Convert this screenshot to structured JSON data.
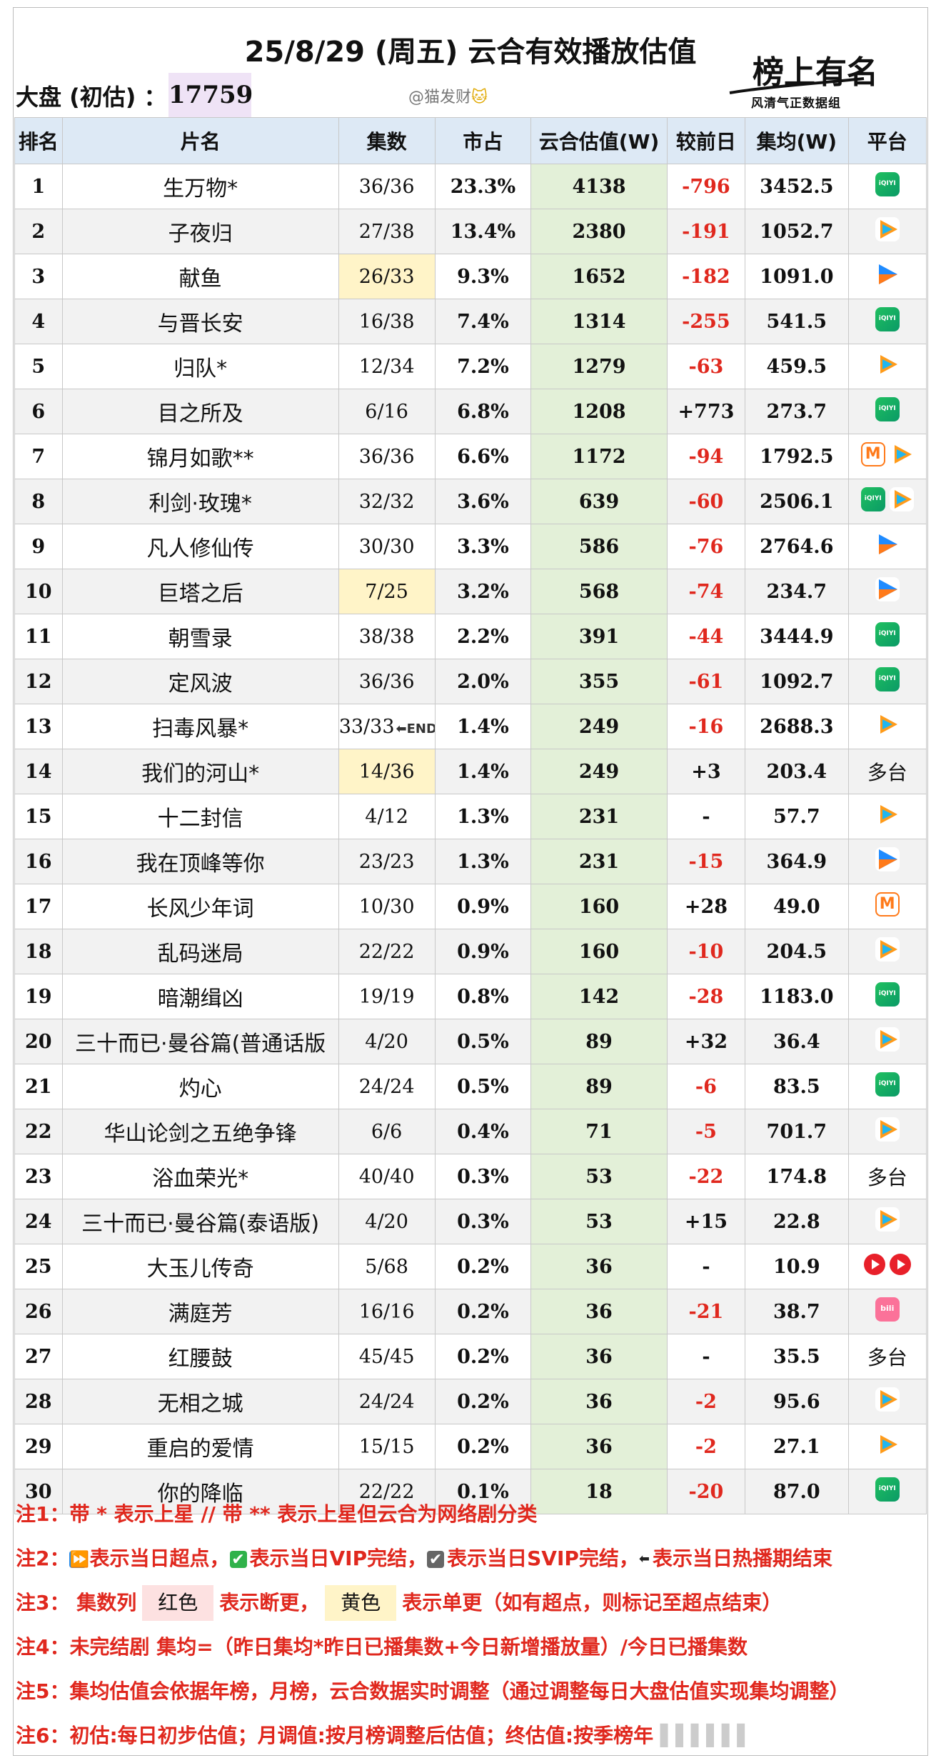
{
  "header": {
    "title": "25/8/29 (周五) 云合有效播放估值",
    "dapan_label": "大盘 (初估) ：",
    "dapan_value": "17759",
    "author": "@猫发财",
    "author_emoji": "🐱",
    "logo_script": "榜上有名",
    "logo_text": "风清气正数据组"
  },
  "table": {
    "columns": [
      "排名",
      "片名",
      "集数",
      "市占",
      "云合估值(W)",
      "较前日",
      "集均(W)",
      "平台"
    ],
    "rows": [
      {
        "rank": "1",
        "name": "生万物*",
        "eps": "36/36",
        "share": "23.3%",
        "value": "4138",
        "diff": "-796",
        "avg": "3452.5",
        "platform": [
          "iqiyi"
        ]
      },
      {
        "rank": "2",
        "name": "子夜归",
        "eps": "27/38",
        "share": "13.4%",
        "value": "2380",
        "diff": "-191",
        "avg": "1052.7",
        "platform": [
          "tencent"
        ]
      },
      {
        "rank": "3",
        "name": "献鱼",
        "eps": "26/33",
        "share": "9.3%",
        "value": "1652",
        "diff": "-182",
        "avg": "1091.0",
        "platform": [
          "youku"
        ],
        "eps_mark": "yellow"
      },
      {
        "rank": "4",
        "name": "与晋长安",
        "eps": "16/38",
        "share": "7.4%",
        "value": "1314",
        "diff": "-255",
        "avg": "541.5",
        "platform": [
          "iqiyi"
        ]
      },
      {
        "rank": "5",
        "name": "归队*",
        "eps": "12/34",
        "share": "7.2%",
        "value": "1279",
        "diff": "-63",
        "avg": "459.5",
        "platform": [
          "tencent"
        ]
      },
      {
        "rank": "6",
        "name": "目之所及",
        "eps": "6/16",
        "share": "6.8%",
        "value": "1208",
        "diff": "+773",
        "avg": "273.7",
        "platform": [
          "iqiyi"
        ]
      },
      {
        "rank": "7",
        "name": "锦月如歌**",
        "eps": "36/36",
        "share": "6.6%",
        "value": "1172",
        "diff": "-94",
        "avg": "1792.5",
        "platform": [
          "mango",
          "tencent"
        ]
      },
      {
        "rank": "8",
        "name": "利剑·玫瑰*",
        "eps": "32/32",
        "share": "3.6%",
        "value": "639",
        "diff": "-60",
        "avg": "2506.1",
        "platform": [
          "iqiyi",
          "tencent"
        ]
      },
      {
        "rank": "9",
        "name": "凡人修仙传",
        "eps": "30/30",
        "share": "3.3%",
        "value": "586",
        "diff": "-76",
        "avg": "2764.6",
        "platform": [
          "youku"
        ]
      },
      {
        "rank": "10",
        "name": "巨塔之后",
        "eps": "7/25",
        "share": "3.2%",
        "value": "568",
        "diff": "-74",
        "avg": "234.7",
        "platform": [
          "youku"
        ],
        "eps_mark": "yellow"
      },
      {
        "rank": "11",
        "name": "朝雪录",
        "eps": "38/38",
        "share": "2.2%",
        "value": "391",
        "diff": "-44",
        "avg": "3444.9",
        "platform": [
          "iqiyi"
        ]
      },
      {
        "rank": "12",
        "name": "定风波",
        "eps": "36/36",
        "share": "2.0%",
        "value": "355",
        "diff": "-61",
        "avg": "1092.7",
        "platform": [
          "iqiyi"
        ]
      },
      {
        "rank": "13",
        "name": "扫毒风暴*",
        "eps": "33/33",
        "share": "1.4%",
        "value": "249",
        "diff": "-16",
        "avg": "2688.3",
        "platform": [
          "tencent"
        ],
        "end_mark": "⬅END"
      },
      {
        "rank": "14",
        "name": "我们的河山*",
        "eps": "14/36",
        "share": "1.4%",
        "value": "249",
        "diff": "+3",
        "avg": "203.4",
        "platform_text": "多台",
        "eps_mark": "yellow"
      },
      {
        "rank": "15",
        "name": "十二封信",
        "eps": "4/12",
        "share": "1.3%",
        "value": "231",
        "diff": "-",
        "avg": "57.7",
        "platform": [
          "tencent"
        ]
      },
      {
        "rank": "16",
        "name": "我在顶峰等你",
        "eps": "23/23",
        "share": "1.3%",
        "value": "231",
        "diff": "-15",
        "avg": "364.9",
        "platform": [
          "youku"
        ]
      },
      {
        "rank": "17",
        "name": "长风少年词",
        "eps": "10/30",
        "share": "0.9%",
        "value": "160",
        "diff": "+28",
        "avg": "49.0",
        "platform": [
          "mango"
        ]
      },
      {
        "rank": "18",
        "name": "乱码迷局",
        "eps": "22/22",
        "share": "0.9%",
        "value": "160",
        "diff": "-10",
        "avg": "204.5",
        "platform": [
          "tencent"
        ]
      },
      {
        "rank": "19",
        "name": "暗潮缉凶",
        "eps": "19/19",
        "share": "0.8%",
        "value": "142",
        "diff": "-28",
        "avg": "1183.0",
        "platform": [
          "iqiyi"
        ]
      },
      {
        "rank": "20",
        "name": "三十而已·曼谷篇(普通话版",
        "eps": "4/20",
        "share": "0.5%",
        "value": "89",
        "diff": "+32",
        "avg": "36.4",
        "platform": [
          "tencent"
        ]
      },
      {
        "rank": "21",
        "name": "灼心",
        "eps": "24/24",
        "share": "0.5%",
        "value": "89",
        "diff": "-6",
        "avg": "83.5",
        "platform": [
          "iqiyi"
        ]
      },
      {
        "rank": "22",
        "name": "华山论剑之五绝争锋",
        "eps": "6/6",
        "share": "0.4%",
        "value": "71",
        "diff": "-5",
        "avg": "701.7",
        "platform": [
          "tencent"
        ]
      },
      {
        "rank": "23",
        "name": "浴血荣光*",
        "eps": "40/40",
        "share": "0.3%",
        "value": "53",
        "diff": "-22",
        "avg": "174.8",
        "platform_text": "多台"
      },
      {
        "rank": "24",
        "name": "三十而已·曼谷篇(泰语版)",
        "eps": "4/20",
        "share": "0.3%",
        "value": "53",
        "diff": "+15",
        "avg": "22.8",
        "platform": [
          "tencent"
        ]
      },
      {
        "rank": "25",
        "name": "大玉儿传奇",
        "eps": "5/68",
        "share": "0.2%",
        "value": "36",
        "diff": "-",
        "avg": "10.9",
        "platform": [
          "red",
          "red"
        ]
      },
      {
        "rank": "26",
        "name": "满庭芳",
        "eps": "16/16",
        "share": "0.2%",
        "value": "36",
        "diff": "-21",
        "avg": "38.7",
        "platform": [
          "bili"
        ]
      },
      {
        "rank": "27",
        "name": "红腰鼓",
        "eps": "45/45",
        "share": "0.2%",
        "value": "36",
        "diff": "-",
        "avg": "35.5",
        "platform_text": "多台"
      },
      {
        "rank": "28",
        "name": "无相之城",
        "eps": "24/24",
        "share": "0.2%",
        "value": "36",
        "diff": "-2",
        "avg": "95.6",
        "platform": [
          "tencent"
        ]
      },
      {
        "rank": "29",
        "name": "重启的爱情",
        "eps": "15/15",
        "share": "0.2%",
        "value": "36",
        "diff": "-2",
        "avg": "27.1",
        "platform": [
          "tencent"
        ]
      },
      {
        "rank": "30",
        "name": "你的降临",
        "eps": "22/22",
        "share": "0.1%",
        "value": "18",
        "diff": "-20",
        "avg": "87.0",
        "platform": [
          "iqiyi"
        ]
      }
    ]
  },
  "notes": {
    "n1": "注1：带 * 表示上星 // 带 ** 表示上星但云合为网络剧分类",
    "n2_prefix": "注2：",
    "n2_a": "表示当日超点，",
    "n2_b": "表示当日VIP完结，",
    "n2_c": "表示当日SVIP完结，",
    "n2_d": "表示当日热播期结束",
    "n3_prefix": "注3：  集数列",
    "n3_red": "红色",
    "n3_mid": "表示断更，",
    "n3_yellow": "黄色",
    "n3_suffix": "表示单更（如有超点，则标记至超点结束）",
    "n4": "注4：未完结剧 集均=（昨日集均*昨日已播集数+今日新增播放量）/今日已播集数",
    "n5": "注5：集均估值会依据年榜，月榜，云合数据实时调整（通过调整每日大盘估值实现集均调整）",
    "n6": "注6：初估:每日初步估值；月调值:按月榜调整后估值；终估值:按季榜年"
  }
}
